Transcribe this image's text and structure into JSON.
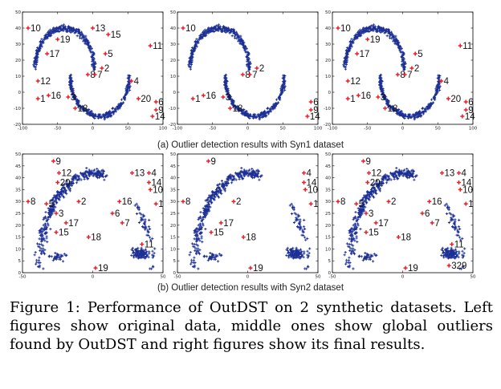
{
  "colors": {
    "normal": "#1c2f94",
    "outlier": "#e8202a",
    "axis": "#000000",
    "label": "#111111"
  },
  "row_captions": [
    "(a) Outlier detection results with Syn1 dataset",
    "(b) Outlier detection results with Syn2 dataset"
  ],
  "caption": {
    "label": "Figure 1:",
    "text": "Performance of OutDST on 2 synthetic datasets. Left figures show original data, middle ones show global outliers found by OutDST and right figures show its final results."
  },
  "chart_data": [
    {
      "type": "scatter",
      "dataset": "Syn1",
      "panel": "original data",
      "xlim": [
        -100,
        100
      ],
      "ylim": [
        -20,
        50
      ],
      "xticks": [
        -100,
        -50,
        0,
        50,
        100
      ],
      "yticks": [
        -20,
        -10,
        0,
        10,
        20,
        30,
        40,
        50
      ],
      "shape": "two-moons",
      "outliers": [
        {
          "id": "10",
          "x": -92,
          "y": 40
        },
        {
          "id": "13",
          "x": 0,
          "y": 40
        },
        {
          "id": "15",
          "x": 22,
          "y": 36
        },
        {
          "id": "19",
          "x": -50,
          "y": 33
        },
        {
          "id": "11",
          "x": 82,
          "y": 29
        },
        {
          "id": "17",
          "x": -65,
          "y": 24
        },
        {
          "id": "5",
          "x": 18,
          "y": 24
        },
        {
          "id": "2",
          "x": 13,
          "y": 15
        },
        {
          "id": "8",
          "x": -7,
          "y": 11
        },
        {
          "id": "7",
          "x": 3,
          "y": 11
        },
        {
          "id": "12",
          "x": -78,
          "y": 7
        },
        {
          "id": "4",
          "x": 55,
          "y": 7
        },
        {
          "id": "16",
          "x": -63,
          "y": -2
        },
        {
          "id": "3",
          "x": -35,
          "y": -3
        },
        {
          "id": "1",
          "x": -78,
          "y": -4
        },
        {
          "id": "20",
          "x": 65,
          "y": -4
        },
        {
          "id": "6",
          "x": 90,
          "y": -6
        },
        {
          "id": "18",
          "x": -25,
          "y": -10
        },
        {
          "id": "9",
          "x": 90,
          "y": -11
        },
        {
          "id": "14",
          "x": 85,
          "y": -15
        }
      ]
    },
    {
      "type": "scatter",
      "dataset": "Syn1",
      "panel": "global outliers found by OutDST",
      "xlim": [
        -100,
        100
      ],
      "ylim": [
        -20,
        50
      ],
      "xticks": [
        -100,
        -50,
        0,
        50,
        100
      ],
      "yticks": [
        -20,
        -10,
        0,
        10,
        20,
        30,
        40,
        50
      ],
      "shape": "two-moons",
      "outliers": [
        {
          "id": "10",
          "x": -92,
          "y": 40
        },
        {
          "id": "2",
          "x": 13,
          "y": 15
        },
        {
          "id": "8",
          "x": -7,
          "y": 11
        },
        {
          "id": "7",
          "x": 3,
          "y": 11
        },
        {
          "id": "16",
          "x": -63,
          "y": -2
        },
        {
          "id": "3",
          "x": -35,
          "y": -3
        },
        {
          "id": "1",
          "x": -78,
          "y": -4
        },
        {
          "id": "18",
          "x": -25,
          "y": -10
        },
        {
          "id": "6",
          "x": 90,
          "y": -6
        },
        {
          "id": "9",
          "x": 90,
          "y": -11
        },
        {
          "id": "14",
          "x": 85,
          "y": -15
        }
      ]
    },
    {
      "type": "scatter",
      "dataset": "Syn1",
      "panel": "final results",
      "xlim": [
        -100,
        100
      ],
      "ylim": [
        -20,
        50
      ],
      "xticks": [
        -100,
        -50,
        0,
        50,
        100
      ],
      "yticks": [
        -20,
        -10,
        0,
        10,
        20,
        30,
        40,
        50
      ],
      "shape": "two-moons",
      "outliers": [
        {
          "id": "10",
          "x": -92,
          "y": 40
        },
        {
          "id": "19",
          "x": -50,
          "y": 33
        },
        {
          "id": "11",
          "x": 82,
          "y": 29
        },
        {
          "id": "17",
          "x": -65,
          "y": 24
        },
        {
          "id": "5",
          "x": 18,
          "y": 24
        },
        {
          "id": "2",
          "x": 13,
          "y": 15
        },
        {
          "id": "8",
          "x": -7,
          "y": 11
        },
        {
          "id": "7",
          "x": 3,
          "y": 11
        },
        {
          "id": "12",
          "x": -78,
          "y": 7
        },
        {
          "id": "4",
          "x": 55,
          "y": 7
        },
        {
          "id": "16",
          "x": -63,
          "y": -2
        },
        {
          "id": "3",
          "x": -35,
          "y": -3
        },
        {
          "id": "1",
          "x": -78,
          "y": -4
        },
        {
          "id": "20",
          "x": 65,
          "y": -4
        },
        {
          "id": "6",
          "x": 90,
          "y": -6
        },
        {
          "id": "18",
          "x": -25,
          "y": -10
        },
        {
          "id": "9",
          "x": 90,
          "y": -11
        },
        {
          "id": "14",
          "x": 85,
          "y": -15
        }
      ]
    },
    {
      "type": "scatter",
      "dataset": "Syn2",
      "panel": "original data",
      "xlim": [
        -50,
        50
      ],
      "ylim": [
        0,
        50
      ],
      "xticks": [
        -50,
        0,
        50
      ],
      "yticks": [
        0,
        5,
        10,
        15,
        20,
        25,
        30,
        35,
        40,
        45,
        50
      ],
      "shape": "arc-and-blobs",
      "outliers": [
        {
          "id": "9",
          "x": -28,
          "y": 47
        },
        {
          "id": "12",
          "x": -24,
          "y": 42
        },
        {
          "id": "13",
          "x": 28,
          "y": 42
        },
        {
          "id": "4",
          "x": 40,
          "y": 42
        },
        {
          "id": "20",
          "x": -25,
          "y": 38
        },
        {
          "id": "14",
          "x": 40,
          "y": 38
        },
        {
          "id": "10",
          "x": 41,
          "y": 35
        },
        {
          "id": "8",
          "x": -46,
          "y": 30
        },
        {
          "id": "2",
          "x": -10,
          "y": 30
        },
        {
          "id": "16",
          "x": 19,
          "y": 30
        },
        {
          "id": "1",
          "x": 45,
          "y": 29
        },
        {
          "id": "5",
          "x": -33,
          "y": 29
        },
        {
          "id": "3",
          "x": -26,
          "y": 25
        },
        {
          "id": "6",
          "x": 14,
          "y": 25
        },
        {
          "id": "17",
          "x": -19,
          "y": 21
        },
        {
          "id": "7",
          "x": 21,
          "y": 21
        },
        {
          "id": "15",
          "x": -26,
          "y": 17
        },
        {
          "id": "18",
          "x": -3,
          "y": 15
        },
        {
          "id": "11",
          "x": 35,
          "y": 12
        },
        {
          "id": "19",
          "x": 2,
          "y": 2
        }
      ]
    },
    {
      "type": "scatter",
      "dataset": "Syn2",
      "panel": "global outliers found by OutDST",
      "xlim": [
        -50,
        50
      ],
      "ylim": [
        0,
        50
      ],
      "xticks": [
        -50,
        0,
        50
      ],
      "yticks": [
        0,
        5,
        10,
        15,
        20,
        25,
        30,
        35,
        40,
        45,
        50
      ],
      "shape": "arc-and-blobs",
      "outliers": [
        {
          "id": "9",
          "x": -28,
          "y": 47
        },
        {
          "id": "4",
          "x": 40,
          "y": 42
        },
        {
          "id": "14",
          "x": 40,
          "y": 38
        },
        {
          "id": "10",
          "x": 41,
          "y": 35
        },
        {
          "id": "8",
          "x": -46,
          "y": 30
        },
        {
          "id": "2",
          "x": -10,
          "y": 30
        },
        {
          "id": "1",
          "x": 45,
          "y": 29
        },
        {
          "id": "17",
          "x": -19,
          "y": 21
        },
        {
          "id": "15",
          "x": -26,
          "y": 17
        },
        {
          "id": "18",
          "x": -3,
          "y": 15
        },
        {
          "id": "19",
          "x": 2,
          "y": 2
        }
      ]
    },
    {
      "type": "scatter",
      "dataset": "Syn2",
      "panel": "final results",
      "xlim": [
        -50,
        50
      ],
      "ylim": [
        0,
        50
      ],
      "xticks": [
        -50,
        0,
        50
      ],
      "yticks": [
        0,
        5,
        10,
        15,
        20,
        25,
        30,
        35,
        40,
        45,
        50
      ],
      "shape": "arc-and-blobs",
      "outliers": [
        {
          "id": "9",
          "x": -28,
          "y": 47
        },
        {
          "id": "12",
          "x": -24,
          "y": 42
        },
        {
          "id": "13",
          "x": 28,
          "y": 42
        },
        {
          "id": "4",
          "x": 40,
          "y": 42
        },
        {
          "id": "20",
          "x": -25,
          "y": 38
        },
        {
          "id": "14",
          "x": 40,
          "y": 38
        },
        {
          "id": "10",
          "x": 41,
          "y": 35
        },
        {
          "id": "8",
          "x": -46,
          "y": 30
        },
        {
          "id": "2",
          "x": -10,
          "y": 30
        },
        {
          "id": "16",
          "x": 19,
          "y": 30
        },
        {
          "id": "1",
          "x": 45,
          "y": 29
        },
        {
          "id": "5",
          "x": -33,
          "y": 29
        },
        {
          "id": "3",
          "x": -26,
          "y": 25
        },
        {
          "id": "6",
          "x": 14,
          "y": 25
        },
        {
          "id": "17",
          "x": -19,
          "y": 21
        },
        {
          "id": "7",
          "x": 21,
          "y": 21
        },
        {
          "id": "15",
          "x": -26,
          "y": 17
        },
        {
          "id": "18",
          "x": -3,
          "y": 15
        },
        {
          "id": "11",
          "x": 35,
          "y": 12
        },
        {
          "id": "19",
          "x": 2,
          "y": 2
        },
        {
          "id": "329",
          "x": 33,
          "y": 3
        }
      ]
    }
  ]
}
